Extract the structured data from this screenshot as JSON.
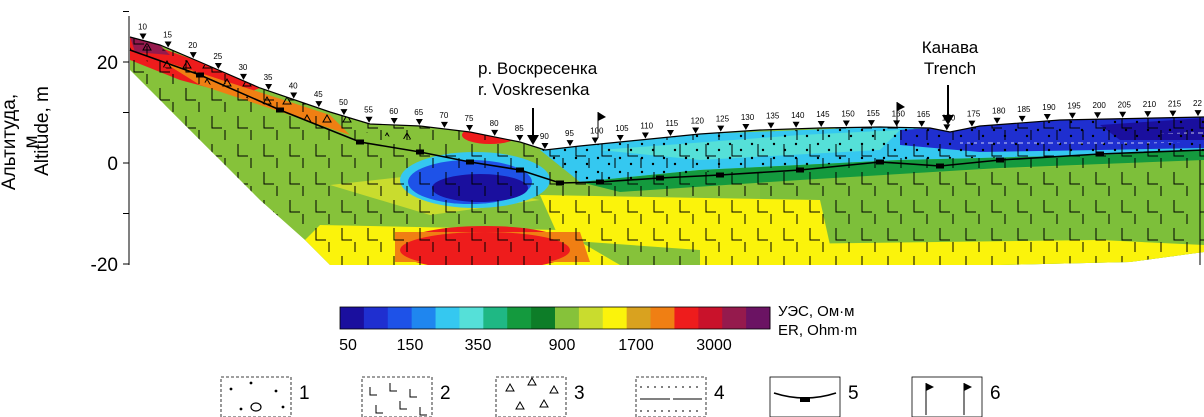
{
  "section": {
    "y_axis": {
      "title_ru": "Альтитуда, м",
      "title_en": "Altitude, m",
      "ticks": [
        20,
        0,
        -20
      ],
      "range": [
        -20,
        30
      ]
    },
    "picket_labels": [
      "10",
      "15",
      "20",
      "25",
      "30",
      "35",
      "40",
      "45",
      "50",
      "55",
      "60",
      "65",
      "70",
      "75",
      "80",
      "85",
      "90",
      "95",
      "100",
      "105",
      "110",
      "115",
      "120",
      "125",
      "130",
      "135",
      "140",
      "145",
      "150",
      "155",
      "160",
      "165",
      "170",
      "175",
      "180",
      "185",
      "190",
      "195",
      "200",
      "205",
      "210",
      "215",
      "22"
    ],
    "annotations": {
      "river_ru": "р. Воскресенка",
      "river_en": "r. Voskresenka",
      "trench_ru": "Канава",
      "trench_en": "Trench"
    }
  },
  "colorbar": {
    "title_ru": "УЭС, Ом·м",
    "title_en": "ER, Ohm·m",
    "tick_labels": [
      "50",
      "150",
      "350",
      "900",
      "1700",
      "3000"
    ],
    "colors": [
      "#1a0f9e",
      "#1f2fd0",
      "#1e52e8",
      "#1f86ef",
      "#35c8f0",
      "#55e0d8",
      "#1fb884",
      "#149a3e",
      "#0d7d28",
      "#86c23a",
      "#c9dc2e",
      "#fbf30b",
      "#d9a21f",
      "#f07f13",
      "#ee1c1c",
      "#c9122b",
      "#951a4d",
      "#6b1363"
    ]
  },
  "legend": {
    "items": [
      {
        "num": "1",
        "pattern": "dots-circle"
      },
      {
        "num": "2",
        "pattern": "L-basalt"
      },
      {
        "num": "3",
        "pattern": "triangles"
      },
      {
        "num": "4",
        "pattern": "dotted-lines"
      },
      {
        "num": "5",
        "pattern": "boundary-line"
      },
      {
        "num": "6",
        "pattern": "flags"
      }
    ]
  }
}
